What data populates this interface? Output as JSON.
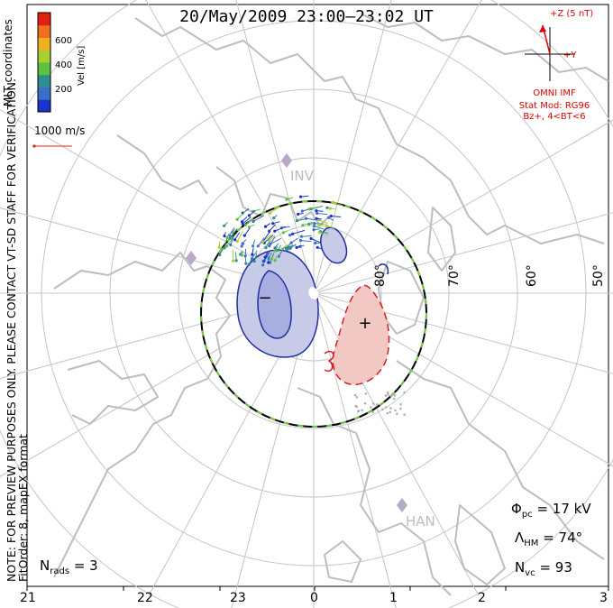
{
  "title": "20/May/2009 23:00–23:02 UT",
  "side_note_line1": "NOTE: FOR PREVIEW PURPOSES ONLY. PLEASE CONTACT VT-SD STAFF FOR VERIFICATION.",
  "side_note_line2": "FitOrder: 8, mapEX format",
  "coordinates_label": "MLT coordinates",
  "colorbar": {
    "label": "Vel [m/s]",
    "ticks": [
      "200",
      "400",
      "600"
    ],
    "colors": [
      "#1a33cc",
      "#3a6ec8",
      "#2f8f8f",
      "#5fbf3f",
      "#a8d030",
      "#f0b020",
      "#f07020",
      "#e02010"
    ]
  },
  "velocity_scale": "1000 m/s",
  "imf": {
    "z_label": "+Z (5 nT)",
    "y_label": "+Y",
    "source": "OMNI IMF",
    "stat_mod": "Stat Mod: RG96",
    "condition": "Bz+, 4<BT<6"
  },
  "latitude_labels": [
    "80°",
    "70°",
    "60°",
    "50°"
  ],
  "stations": [
    "INV",
    "HAN"
  ],
  "potential_markers": {
    "min": "−",
    "max": "+"
  },
  "stats": {
    "phi_pc": {
      "symbol": "Φ",
      "sub": "pc",
      "value": "= 17 kV"
    },
    "lambda_hm": {
      "symbol": "Λ",
      "sub": "HM",
      "value": "= 74°"
    },
    "n_vc": {
      "symbol": "N",
      "sub": "vc",
      "value": "= 93"
    },
    "n_rads": {
      "symbol": "N",
      "sub": "rads",
      "value": "= 3"
    }
  },
  "mlt_ticks": [
    "21",
    "22",
    "23",
    "0",
    "1",
    "2",
    "3"
  ],
  "colors": {
    "grid": "#bfbfbf",
    "coast": "#bdbdbd",
    "neg_contour": "#1f2fa0",
    "neg_fill": "#c8cbe8",
    "pos_contour": "#d02020",
    "pos_fill": "#f2c8c4",
    "imf": "#e00000"
  }
}
